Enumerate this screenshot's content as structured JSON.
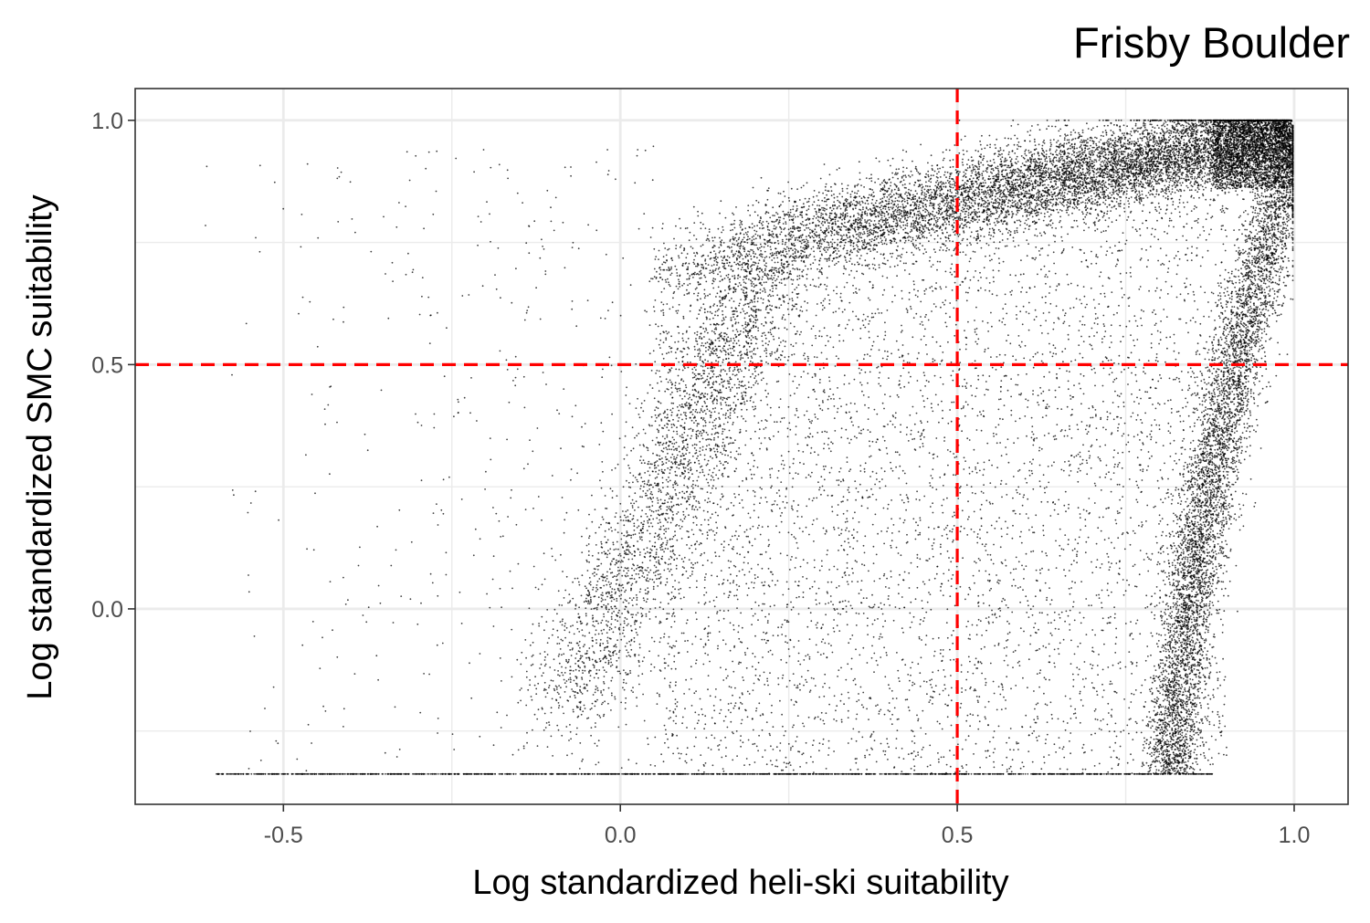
{
  "chart_data": {
    "type": "scatter",
    "title": "Frisby  Boulder",
    "xlabel": "Log standardized heli-ski suitability",
    "ylabel": "Log standardized SMC suitability",
    "xlim": [
      -0.72,
      1.08
    ],
    "ylim": [
      -0.4,
      1.065
    ],
    "x_ticks": [
      {
        "value": -0.5,
        "label": "-0.5"
      },
      {
        "value": 0.0,
        "label": "0.0"
      },
      {
        "value": 0.5,
        "label": "0.5"
      },
      {
        "value": 1.0,
        "label": "1.0"
      }
    ],
    "y_ticks": [
      {
        "value": 0.0,
        "label": "0.0"
      },
      {
        "value": 0.5,
        "label": "0.5"
      },
      {
        "value": 1.0,
        "label": "1.0"
      }
    ],
    "x_minor_gridlines": [
      -0.25,
      0.25,
      0.75
    ],
    "y_minor_gridlines": [
      -0.25,
      0.25,
      0.75
    ],
    "grid": true,
    "point_color": "#000000",
    "reference_lines": [
      {
        "orientation": "vertical",
        "value": 0.5,
        "color": "#ff0000",
        "style": "dashed"
      },
      {
        "orientation": "horizontal",
        "value": 0.5,
        "color": "#ff0000",
        "style": "dashed"
      }
    ],
    "series": [
      {
        "points_description_density": [
          {
            "x": 0.05,
            "y": 0.68
          },
          {
            "x": 0.3,
            "y": 0.8
          },
          {
            "x": 0.6,
            "y": 0.86
          },
          {
            "x": 0.9,
            "y": 0.93
          },
          {
            "x": 0.99,
            "y": 0.99
          },
          {
            "x": 0.85,
            "y": -0.33
          },
          {
            "x": 0.88,
            "y": 0.3
          },
          {
            "x": 0.93,
            "y": 0.6
          },
          {
            "x": 0.0,
            "y": 0.2
          },
          {
            "x": 0.1,
            "y": 0.45
          },
          {
            "x": -0.6,
            "y": -0.338
          },
          {
            "x": 0.88,
            "y": -0.338
          }
        ]
      }
    ]
  }
}
